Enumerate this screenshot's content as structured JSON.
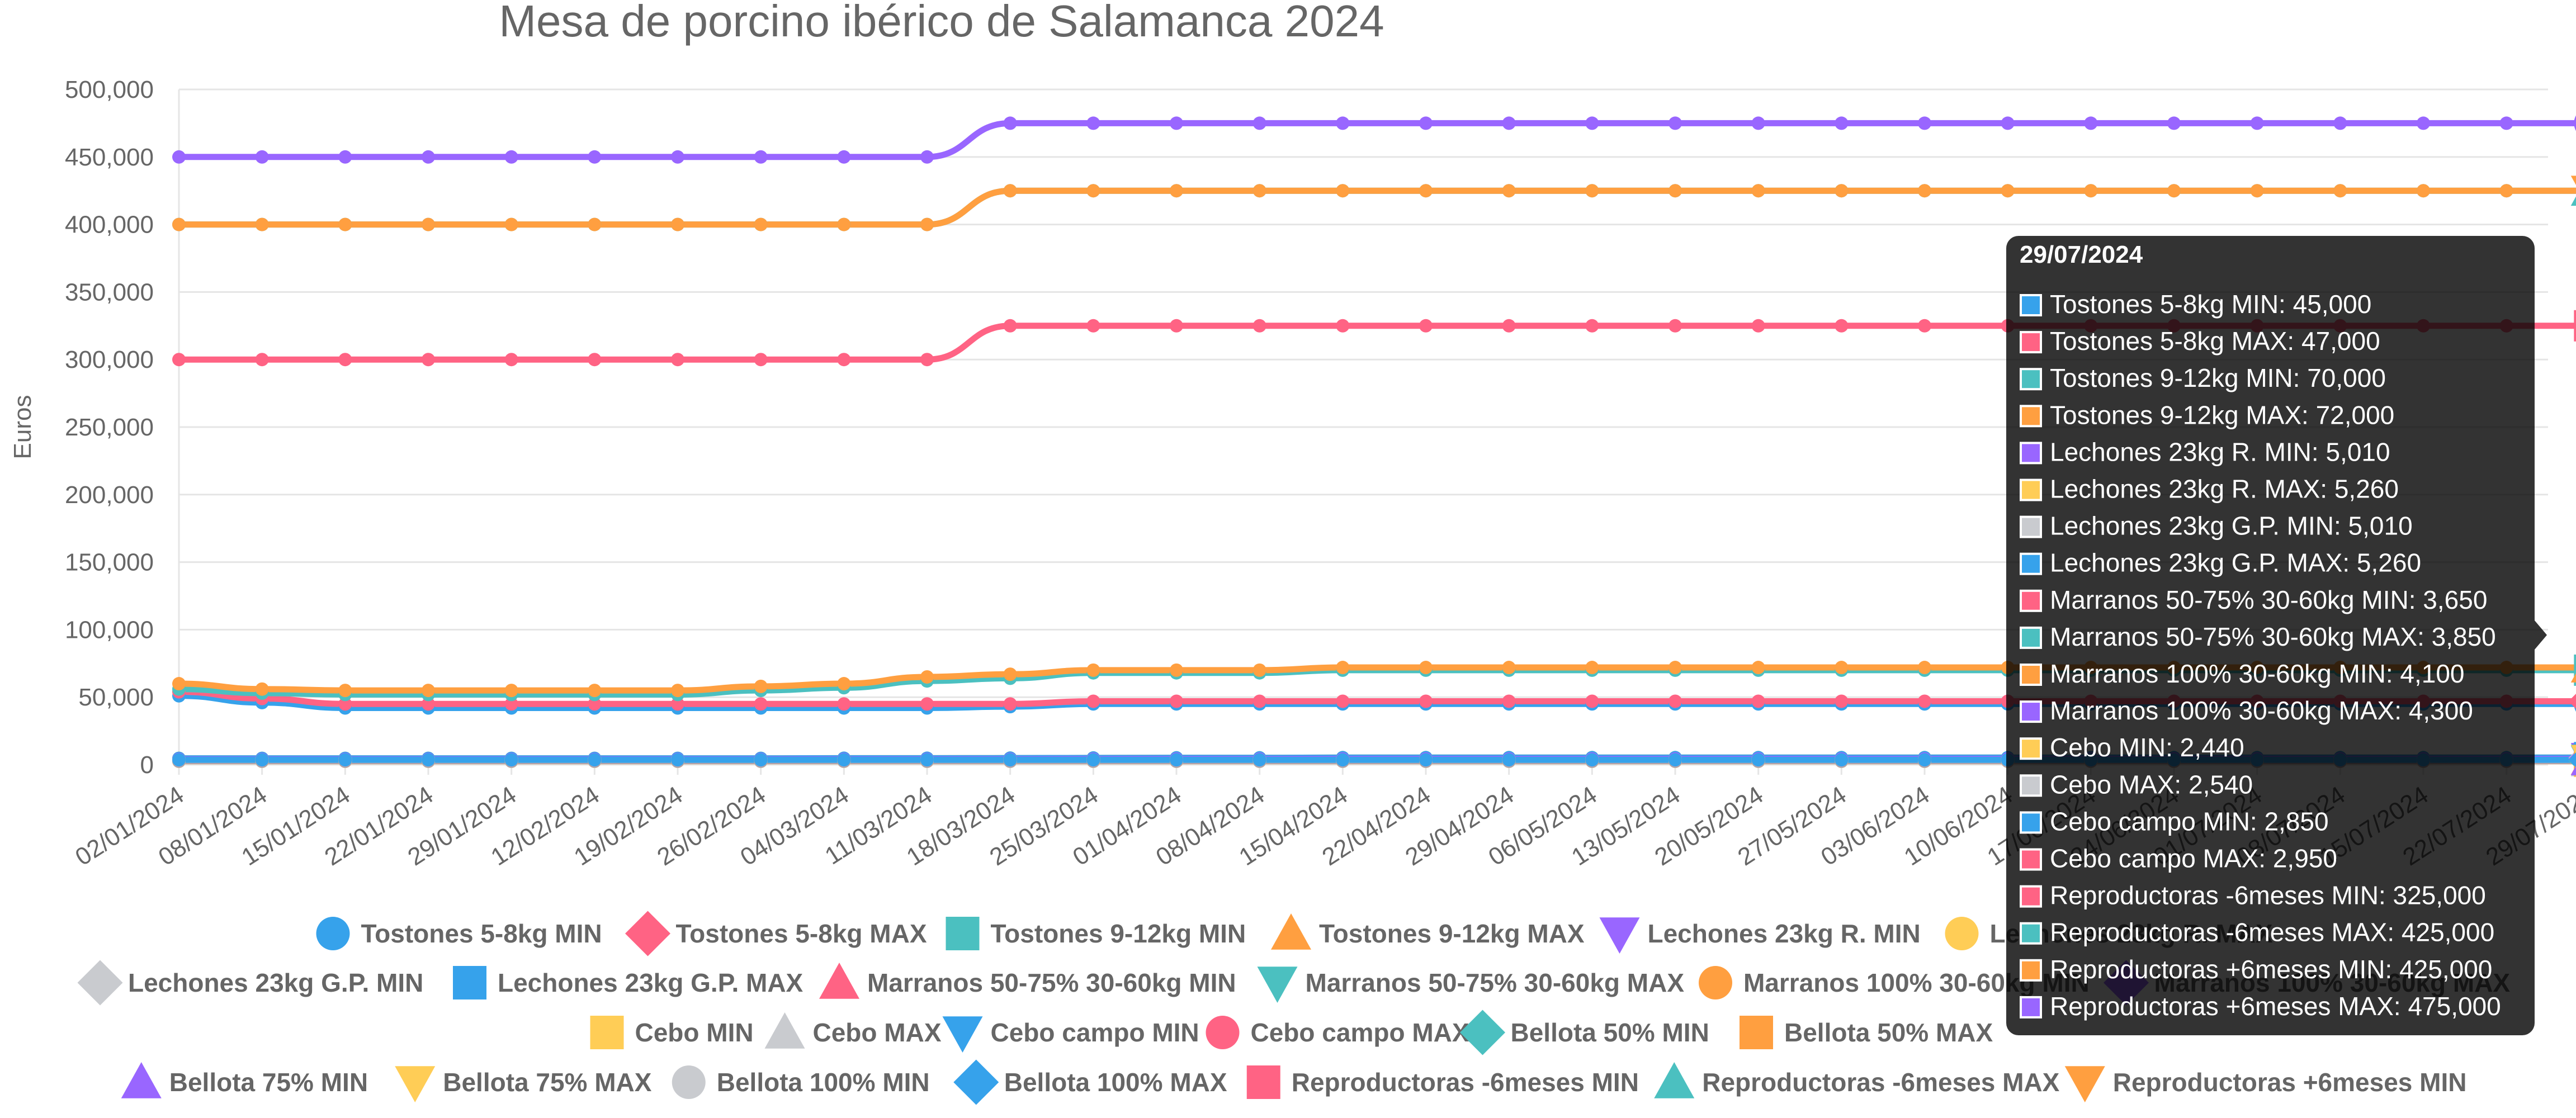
{
  "chart_data": {
    "type": "line",
    "title": "Mesa de porcino ibérico de Salamanca 2024",
    "ylabel": "Euros",
    "xlabel": "",
    "ylim": [
      0,
      500000
    ],
    "y_ticks": [
      "0",
      "50,000",
      "100,000",
      "150,000",
      "200,000",
      "250,000",
      "300,000",
      "350,000",
      "400,000",
      "450,000",
      "500,000"
    ],
    "grid": true,
    "legend_position": "bottom",
    "categories": [
      "02/01/2024",
      "08/01/2024",
      "15/01/2024",
      "22/01/2024",
      "29/01/2024",
      "12/02/2024",
      "19/02/2024",
      "26/02/2024",
      "04/03/2024",
      "11/03/2024",
      "18/03/2024",
      "25/03/2024",
      "01/04/2024",
      "08/04/2024",
      "15/04/2024",
      "22/04/2024",
      "29/04/2024",
      "06/05/2024",
      "13/05/2024",
      "20/05/2024",
      "27/05/2024",
      "03/06/2024",
      "10/06/2024",
      "17/06/2024",
      "24/06/2024",
      "01/07/2024",
      "08/07/2024",
      "15/07/2024",
      "22/07/2024",
      "29/07/2024"
    ],
    "series": [
      {
        "name": "Tostones 5-8kg MIN",
        "color": "#36a2eb",
        "marker": "circle",
        "values": [
          51000,
          46000,
          42000,
          42000,
          42000,
          42000,
          42000,
          42000,
          42000,
          42000,
          43000,
          45000,
          45000,
          45000,
          45000,
          45000,
          45000,
          45000,
          45000,
          45000,
          45000,
          45000,
          45000,
          45000,
          45000,
          45000,
          45000,
          45000,
          45000,
          45000
        ]
      },
      {
        "name": "Tostones 5-8kg MAX",
        "color": "#ff6384",
        "marker": "rectRot",
        "values": [
          54000,
          49000,
          45000,
          45000,
          45000,
          45000,
          45000,
          45000,
          45000,
          45000,
          45000,
          47000,
          47000,
          47000,
          47000,
          47000,
          47000,
          47000,
          47000,
          47000,
          47000,
          47000,
          47000,
          47000,
          47000,
          47000,
          47000,
          47000,
          47000,
          47000
        ]
      },
      {
        "name": "Tostones 9-12kg MIN",
        "color": "#4bc0c0",
        "marker": "rect",
        "values": [
          56000,
          53000,
          52000,
          52000,
          52000,
          52000,
          52000,
          55000,
          57000,
          62000,
          64000,
          68000,
          68000,
          68000,
          70000,
          70000,
          70000,
          70000,
          70000,
          70000,
          70000,
          70000,
          70000,
          70000,
          70000,
          70000,
          70000,
          70000,
          70000,
          70000
        ]
      },
      {
        "name": "Tostones 9-12kg MAX",
        "color": "#ff9f40",
        "marker": "triangle",
        "values": [
          60000,
          56000,
          55000,
          55000,
          55000,
          55000,
          55000,
          58000,
          60000,
          65000,
          67000,
          70000,
          70000,
          70000,
          72000,
          72000,
          72000,
          72000,
          72000,
          72000,
          72000,
          72000,
          72000,
          72000,
          72000,
          72000,
          72000,
          72000,
          72000,
          72000
        ]
      },
      {
        "name": "Lechones 23kg R. MIN",
        "color": "#9966ff",
        "marker": "triangleDown",
        "values": [
          4500,
          4500,
          4500,
          4500,
          4500,
          4500,
          4500,
          4500,
          4600,
          4600,
          4700,
          4800,
          4900,
          4900,
          5010,
          5010,
          5010,
          5010,
          5010,
          5010,
          5010,
          5010,
          5010,
          5010,
          5010,
          5010,
          5010,
          5010,
          5010,
          5010
        ]
      },
      {
        "name": "Lechones 23kg R. MAX",
        "color": "#ffcd56",
        "marker": "circle",
        "values": [
          4700,
          4700,
          4700,
          4700,
          4700,
          4700,
          4700,
          4700,
          4800,
          4800,
          4900,
          5000,
          5100,
          5100,
          5260,
          5260,
          5260,
          5260,
          5260,
          5260,
          5260,
          5260,
          5260,
          5260,
          5260,
          5260,
          5260,
          5260,
          5260,
          5260
        ]
      },
      {
        "name": "Lechones 23kg G.P. MIN",
        "color": "#c9cbcf",
        "marker": "rectRot",
        "values": [
          4500,
          4500,
          4500,
          4500,
          4500,
          4500,
          4500,
          4500,
          4600,
          4600,
          4700,
          4800,
          4900,
          4900,
          5010,
          5010,
          5010,
          5010,
          5010,
          5010,
          5010,
          5010,
          5010,
          5010,
          5010,
          5010,
          5010,
          5010,
          5010,
          5010
        ]
      },
      {
        "name": "Lechones 23kg G.P. MAX",
        "color": "#36a2eb",
        "marker": "rect",
        "values": [
          4700,
          4700,
          4700,
          4700,
          4700,
          4700,
          4700,
          4700,
          4800,
          4800,
          4900,
          5000,
          5100,
          5100,
          5260,
          5260,
          5260,
          5260,
          5260,
          5260,
          5260,
          5260,
          5260,
          5260,
          5260,
          5260,
          5260,
          5260,
          5260,
          5260
        ]
      },
      {
        "name": "Marranos 50-75% 30-60kg MIN",
        "color": "#ff6384",
        "marker": "triangle",
        "values": [
          3400,
          3400,
          3400,
          3400,
          3400,
          3400,
          3400,
          3400,
          3450,
          3450,
          3500,
          3550,
          3600,
          3600,
          3650,
          3650,
          3650,
          3650,
          3650,
          3650,
          3650,
          3650,
          3650,
          3650,
          3650,
          3650,
          3650,
          3650,
          3650,
          3650
        ]
      },
      {
        "name": "Marranos 50-75% 30-60kg MAX",
        "color": "#4bc0c0",
        "marker": "triangleDown",
        "values": [
          3600,
          3600,
          3600,
          3600,
          3600,
          3600,
          3600,
          3600,
          3650,
          3650,
          3700,
          3750,
          3800,
          3800,
          3850,
          3850,
          3850,
          3850,
          3850,
          3850,
          3850,
          3850,
          3850,
          3850,
          3850,
          3850,
          3850,
          3850,
          3850,
          3850
        ]
      },
      {
        "name": "Marranos 100% 30-60kg MIN",
        "color": "#ff9f40",
        "marker": "circle",
        "values": [
          3800,
          3800,
          3800,
          3800,
          3800,
          3800,
          3800,
          3800,
          3850,
          3850,
          3900,
          4000,
          4050,
          4050,
          4100,
          4100,
          4100,
          4100,
          4100,
          4100,
          4100,
          4100,
          4100,
          4100,
          4100,
          4100,
          4100,
          4100,
          4100,
          4100
        ]
      },
      {
        "name": "Marranos 100% 30-60kg MAX",
        "color": "#9966ff",
        "marker": "rectRot",
        "values": [
          4000,
          4000,
          4000,
          4000,
          4000,
          4000,
          4000,
          4000,
          4050,
          4050,
          4100,
          4200,
          4250,
          4250,
          4300,
          4300,
          4300,
          4300,
          4300,
          4300,
          4300,
          4300,
          4300,
          4300,
          4300,
          4300,
          4300,
          4300,
          4300,
          4300
        ]
      },
      {
        "name": "Cebo MIN",
        "color": "#ffcd56",
        "marker": "rect",
        "values": [
          2440,
          2440,
          2440,
          2440,
          2440,
          2440,
          2440,
          2440,
          2440,
          2440,
          2440,
          2440,
          2440,
          2440,
          2440,
          2440,
          2440,
          2440,
          2440,
          2440,
          2440,
          2440,
          2440,
          2440,
          2440,
          2440,
          2440,
          2440,
          2440,
          2440
        ]
      },
      {
        "name": "Cebo MAX",
        "color": "#c9cbcf",
        "marker": "triangle",
        "values": [
          2540,
          2540,
          2540,
          2540,
          2540,
          2540,
          2540,
          2540,
          2540,
          2540,
          2540,
          2540,
          2540,
          2540,
          2540,
          2540,
          2540,
          2540,
          2540,
          2540,
          2540,
          2540,
          2540,
          2540,
          2540,
          2540,
          2540,
          2540,
          2540,
          2540
        ]
      },
      {
        "name": "Cebo campo MIN",
        "color": "#36a2eb",
        "marker": "triangleDown",
        "values": [
          2850,
          2850,
          2850,
          2850,
          2850,
          2850,
          2850,
          2850,
          2850,
          2850,
          2850,
          2850,
          2850,
          2850,
          2850,
          2850,
          2850,
          2850,
          2850,
          2850,
          2850,
          2850,
          2850,
          2850,
          2850,
          2850,
          2850,
          2850,
          2850,
          2850
        ]
      },
      {
        "name": "Cebo campo MAX",
        "color": "#ff6384",
        "marker": "circle",
        "values": [
          2950,
          2950,
          2950,
          2950,
          2950,
          2950,
          2950,
          2950,
          2950,
          2950,
          2950,
          2950,
          2950,
          2950,
          2950,
          2950,
          2950,
          2950,
          2950,
          2950,
          2950,
          2950,
          2950,
          2950,
          2950,
          2950,
          2950,
          2950,
          2950,
          2950
        ]
      },
      {
        "name": "Bellota 50% MIN",
        "color": "#4bc0c0",
        "marker": "rectRot",
        "values": [
          3100,
          3100,
          3100,
          3100,
          3100,
          3100,
          3100,
          3100,
          3100,
          3100,
          3100,
          3100,
          3100,
          3100,
          3100,
          3100,
          3100,
          3100,
          3100,
          3100,
          3100,
          3100,
          3100,
          3100,
          3100,
          3100,
          3100,
          3100,
          3100,
          3100
        ]
      },
      {
        "name": "Bellota 50% MAX",
        "color": "#ff9f40",
        "marker": "rect",
        "values": [
          3200,
          3200,
          3200,
          3200,
          3200,
          3200,
          3200,
          3200,
          3200,
          3200,
          3200,
          3200,
          3200,
          3200,
          3200,
          3200,
          3200,
          3200,
          3200,
          3200,
          3200,
          3200,
          3200,
          3200,
          3200,
          3200,
          3200,
          3200,
          3200,
          3200
        ]
      },
      {
        "name": "Bellota 75% MIN",
        "color": "#9966ff",
        "marker": "triangle",
        "values": [
          3300,
          3300,
          3300,
          3300,
          3300,
          3300,
          3300,
          3300,
          3300,
          3300,
          3300,
          3300,
          3300,
          3300,
          3300,
          3300,
          3300,
          3300,
          3300,
          3300,
          3300,
          3300,
          3300,
          3300,
          3300,
          3300,
          3300,
          3300,
          3300,
          3300
        ]
      },
      {
        "name": "Bellota 75% MAX",
        "color": "#ffcd56",
        "marker": "triangleDown",
        "values": [
          3400,
          3400,
          3400,
          3400,
          3400,
          3400,
          3400,
          3400,
          3400,
          3400,
          3400,
          3400,
          3400,
          3400,
          3400,
          3400,
          3400,
          3400,
          3400,
          3400,
          3400,
          3400,
          3400,
          3400,
          3400,
          3400,
          3400,
          3400,
          3400,
          3400
        ]
      },
      {
        "name": "Bellota 100% MIN",
        "color": "#c9cbcf",
        "marker": "circle",
        "values": [
          3500,
          3500,
          3500,
          3500,
          3500,
          3500,
          3500,
          3500,
          3500,
          3500,
          3500,
          3500,
          3500,
          3500,
          3500,
          3500,
          3500,
          3500,
          3500,
          3500,
          3500,
          3500,
          3500,
          3500,
          3500,
          3500,
          3500,
          3500,
          3500,
          3500
        ]
      },
      {
        "name": "Bellota 100% MAX",
        "color": "#36a2eb",
        "marker": "rectRot",
        "values": [
          3600,
          3600,
          3600,
          3600,
          3600,
          3600,
          3600,
          3600,
          3600,
          3600,
          3600,
          3600,
          3600,
          3600,
          3600,
          3600,
          3600,
          3600,
          3600,
          3600,
          3600,
          3600,
          3600,
          3600,
          3600,
          3600,
          3600,
          3600,
          3600,
          3600
        ]
      },
      {
        "name": "Reproductoras -6meses MIN",
        "color": "#ff6384",
        "marker": "rect",
        "values": [
          300000,
          300000,
          300000,
          300000,
          300000,
          300000,
          300000,
          300000,
          300000,
          300000,
          325000,
          325000,
          325000,
          325000,
          325000,
          325000,
          325000,
          325000,
          325000,
          325000,
          325000,
          325000,
          325000,
          325000,
          325000,
          325000,
          325000,
          325000,
          325000,
          325000
        ]
      },
      {
        "name": "Reproductoras -6meses MAX",
        "color": "#4bc0c0",
        "marker": "triangle",
        "values": [
          400000,
          400000,
          400000,
          400000,
          400000,
          400000,
          400000,
          400000,
          400000,
          400000,
          425000,
          425000,
          425000,
          425000,
          425000,
          425000,
          425000,
          425000,
          425000,
          425000,
          425000,
          425000,
          425000,
          425000,
          425000,
          425000,
          425000,
          425000,
          425000,
          425000
        ]
      },
      {
        "name": "Reproductoras +6meses MIN",
        "color": "#ff9f40",
        "marker": "triangleDown",
        "values": [
          400000,
          400000,
          400000,
          400000,
          400000,
          400000,
          400000,
          400000,
          400000,
          400000,
          425000,
          425000,
          425000,
          425000,
          425000,
          425000,
          425000,
          425000,
          425000,
          425000,
          425000,
          425000,
          425000,
          425000,
          425000,
          425000,
          425000,
          425000,
          425000,
          425000
        ]
      },
      {
        "name": "Reproductoras +6meses MAX",
        "color": "#9966ff",
        "marker": "circle",
        "values": [
          450000,
          450000,
          450000,
          450000,
          450000,
          450000,
          450000,
          450000,
          450000,
          450000,
          475000,
          475000,
          475000,
          475000,
          475000,
          475000,
          475000,
          475000,
          475000,
          475000,
          475000,
          475000,
          475000,
          475000,
          475000,
          475000,
          475000,
          475000,
          475000,
          475000
        ]
      }
    ],
    "tooltip": {
      "title": "29/07/2024",
      "items": [
        {
          "text": "Tostones 5-8kg MIN: 45,000",
          "color": "#36a2eb"
        },
        {
          "text": "Tostones 5-8kg MAX: 47,000",
          "color": "#ff6384"
        },
        {
          "text": "Tostones 9-12kg MIN: 70,000",
          "color": "#4bc0c0"
        },
        {
          "text": "Tostones 9-12kg MAX: 72,000",
          "color": "#ff9f40"
        },
        {
          "text": "Lechones 23kg R. MIN: 5,010",
          "color": "#9966ff"
        },
        {
          "text": "Lechones 23kg R. MAX: 5,260",
          "color": "#ffcd56"
        },
        {
          "text": "Lechones 23kg G.P. MIN: 5,010",
          "color": "#c9cbcf"
        },
        {
          "text": "Lechones 23kg G.P. MAX: 5,260",
          "color": "#36a2eb"
        },
        {
          "text": "Marranos 50-75% 30-60kg MIN: 3,650",
          "color": "#ff6384"
        },
        {
          "text": "Marranos 50-75% 30-60kg MAX: 3,850",
          "color": "#4bc0c0"
        },
        {
          "text": "Marranos 100% 30-60kg MIN: 4,100",
          "color": "#ff9f40"
        },
        {
          "text": "Marranos 100% 30-60kg MAX: 4,300",
          "color": "#9966ff"
        },
        {
          "text": "Cebo MIN: 2,440",
          "color": "#ffcd56"
        },
        {
          "text": "Cebo MAX: 2,540",
          "color": "#c9cbcf"
        },
        {
          "text": "Cebo campo MIN: 2,850",
          "color": "#36a2eb"
        },
        {
          "text": "Cebo campo MAX: 2,950",
          "color": "#ff6384"
        },
        {
          "text": "Reproductoras -6meses MIN: 325,000",
          "color": "#ff6384"
        },
        {
          "text": "Reproductoras -6meses MAX: 425,000",
          "color": "#4bc0c0"
        },
        {
          "text": "Reproductoras +6meses MIN: 425,000",
          "color": "#ff9f40"
        },
        {
          "text": "Reproductoras +6meses MAX: 475,000",
          "color": "#9966ff"
        }
      ]
    }
  }
}
